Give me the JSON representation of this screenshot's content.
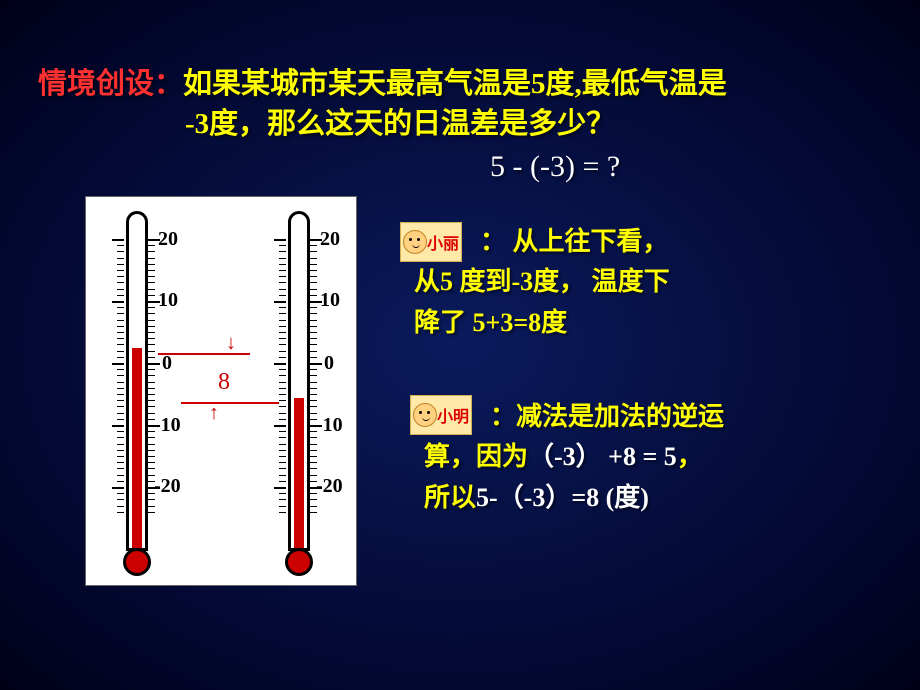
{
  "title": {
    "label": "情境创设：",
    "line1": "如果某城市某天最高气温是5度,最低气温是",
    "line2": "-3度，那么这天的日温差是多少？"
  },
  "equation": "5 - (-3) = ?",
  "thermometer": {
    "labels": [
      "20",
      "10",
      "0",
      "-10",
      "-20"
    ],
    "diff_value": "8",
    "left_reading": 5,
    "right_reading": -3,
    "colors": {
      "mercury": "#c00",
      "border": "#000",
      "bg": "#ffffff"
    }
  },
  "avatar1": {
    "name": "小丽"
  },
  "avatar2": {
    "name": "小明"
  },
  "speech1": {
    "prefix": "：  从上往下看，",
    "line2": "从5 度到-3度， 温度下",
    "line3": "降了 5+3=8度"
  },
  "speech2": {
    "prefix": "：减法是加法的逆运",
    "line2_a": "算，因为",
    "line2_b": "（-3） +8 = 5",
    "line2_c": "，",
    "line3_a": "所以",
    "line3_b": "5-（-3）=8  (度)"
  }
}
